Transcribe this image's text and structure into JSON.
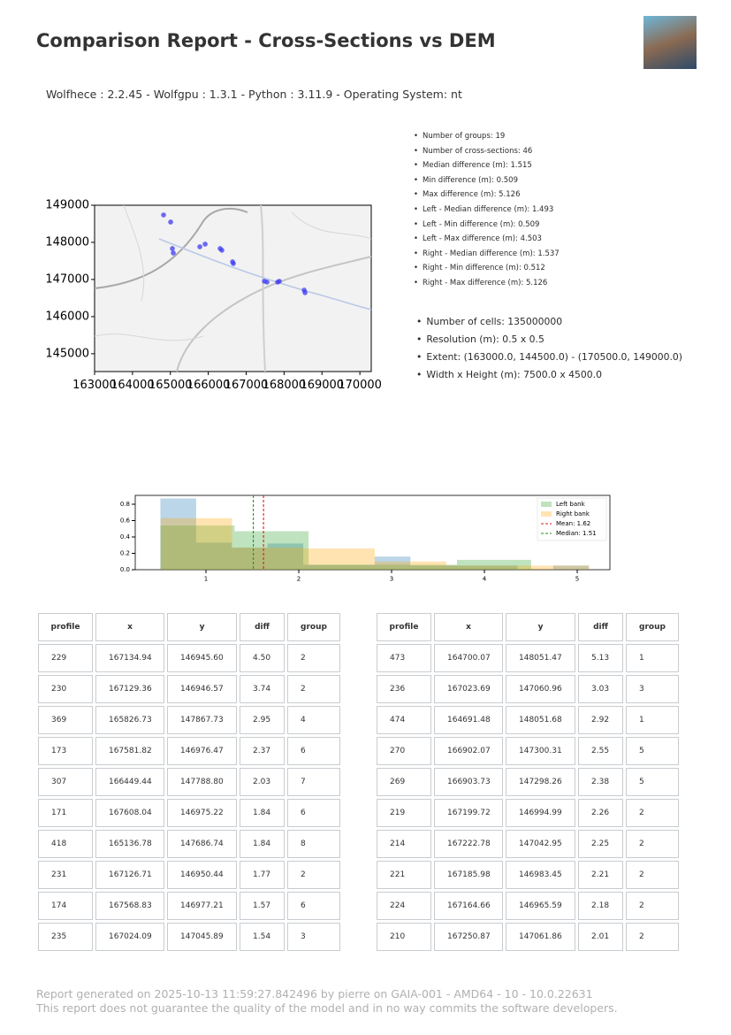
{
  "header": {
    "title": "Comparison Report - Cross-Sections vs DEM",
    "versions": "Wolfhece : 2.2.45 - Wolfgpu : 1.3.1 - Python : 3.11.9 - Operating System: nt"
  },
  "summary": [
    "Number of groups: 19",
    "Number of cross-sections: 46",
    "Median difference (m): 1.515",
    "Min difference (m): 0.509",
    "Max difference (m): 5.126",
    "Left - Median difference (m): 1.493",
    "Left - Min difference (m): 0.509",
    "Left - Max difference (m): 4.503",
    "Right - Median difference (m): 1.537",
    "Right - Min difference (m): 0.512",
    "Right - Max difference (m): 5.126"
  ],
  "dem_info": [
    "Number of cells: 135000000",
    "Resolution (m): 0.5 x 0.5",
    "Extent: (163000.0, 144500.0) - (170500.0, 149000.0)",
    "Width x Height (m): 7500.0 x 4500.0"
  ],
  "chart_data": [
    {
      "type": "scatter",
      "color": "#3b3bf0",
      "x": [
        164820,
        165007,
        165053,
        165077,
        165777,
        165917,
        166313,
        166360,
        166640,
        166663,
        167480,
        167550,
        167830,
        167876,
        168530,
        168553
      ],
      "values": [
        148738,
        148548,
        147833,
        147714,
        147881,
        147952,
        147833,
        147786,
        147476,
        147429,
        146952,
        146929,
        146929,
        146952,
        146714,
        146643
      ],
      "xlim": [
        163000,
        170300
      ],
      "ylim": [
        144520,
        149000
      ],
      "xticks": [
        163000,
        164000,
        165000,
        166000,
        167000,
        168000,
        169000,
        170000
      ],
      "yticks": [
        145000,
        146000,
        147000,
        148000,
        149000
      ]
    },
    {
      "type": "histogram",
      "series": [
        {
          "color": "#1f77b4",
          "bins": [
            0.509,
            0.894,
            1.279,
            1.663,
            2.048,
            2.433,
            2.818,
            3.202,
            3.587,
            3.972,
            4.357,
            4.741,
            5.126
          ],
          "values": [
            0.87,
            0.33,
            0.27,
            0.32,
            0.06,
            0.06,
            0.16,
            0.05,
            0.05,
            0.05,
            0.0,
            0.05
          ]
        },
        {
          "name": "Left bank",
          "color": "#2ca02c",
          "bins": [
            0.509,
            1.308,
            2.106,
            2.905,
            3.704,
            4.503
          ],
          "values": [
            0.54,
            0.47,
            0.06,
            0.06,
            0.12
          ]
        },
        {
          "name": "Right bank",
          "color": "#ffa500",
          "bins": [
            0.512,
            1.281,
            2.05,
            2.819,
            3.588,
            4.357,
            5.126
          ],
          "values": [
            0.63,
            0.27,
            0.26,
            0.1,
            0.05,
            0.05
          ]
        }
      ],
      "lines": [
        {
          "name": "Mean: 1.62",
          "value": 1.62,
          "color": "#e41a1c"
        },
        {
          "name": "Median: 1.51",
          "value": 1.51,
          "color": "#1a9a1a"
        }
      ],
      "xlim": [
        0.238,
        5.352
      ],
      "ylim": [
        0,
        0.908
      ],
      "xticks": [
        1,
        2,
        3,
        4,
        5
      ],
      "yticks": [
        {
          "value": 0,
          "label": "0.0"
        },
        0.2,
        0.4,
        0.6,
        0.8
      ]
    }
  ],
  "tables": [
    {
      "columns": [
        "profile",
        "x",
        "y",
        "diff",
        "group"
      ],
      "rows": [
        [
          "229",
          "167134.94",
          "146945.60",
          "4.50",
          "2"
        ],
        [
          "230",
          "167129.36",
          "146946.57",
          "3.74",
          "2"
        ],
        [
          "369",
          "165826.73",
          "147867.73",
          "2.95",
          "4"
        ],
        [
          "173",
          "167581.82",
          "146976.47",
          "2.37",
          "6"
        ],
        [
          "307",
          "166449.44",
          "147788.80",
          "2.03",
          "7"
        ],
        [
          "171",
          "167608.04",
          "146975.22",
          "1.84",
          "6"
        ],
        [
          "418",
          "165136.78",
          "147686.74",
          "1.84",
          "8"
        ],
        [
          "231",
          "167126.71",
          "146950.44",
          "1.77",
          "2"
        ],
        [
          "174",
          "167568.83",
          "146977.21",
          "1.57",
          "6"
        ],
        [
          "235",
          "167024.09",
          "147045.89",
          "1.54",
          "3"
        ]
      ]
    },
    {
      "columns": [
        "profile",
        "x",
        "y",
        "diff",
        "group"
      ],
      "rows": [
        [
          "473",
          "164700.07",
          "148051.47",
          "5.13",
          "1"
        ],
        [
          "236",
          "167023.69",
          "147060.96",
          "3.03",
          "3"
        ],
        [
          "474",
          "164691.48",
          "148051.68",
          "2.92",
          "1"
        ],
        [
          "270",
          "166902.07",
          "147300.31",
          "2.55",
          "5"
        ],
        [
          "269",
          "166903.73",
          "147298.26",
          "2.38",
          "5"
        ],
        [
          "219",
          "167199.72",
          "146994.99",
          "2.26",
          "2"
        ],
        [
          "214",
          "167222.78",
          "147042.95",
          "2.25",
          "2"
        ],
        [
          "221",
          "167185.98",
          "146983.45",
          "2.21",
          "2"
        ],
        [
          "224",
          "167164.66",
          "146965.59",
          "2.18",
          "2"
        ],
        [
          "210",
          "167250.87",
          "147061.86",
          "2.01",
          "2"
        ]
      ]
    }
  ],
  "footer": [
    "Report generated on 2025-10-13 11:59:27.842496 by pierre on GAIA-001 - AMD64 - 10 - 10.0.22631",
    "This report does not guarantee the quality of the model and in no way commits the software developers."
  ]
}
